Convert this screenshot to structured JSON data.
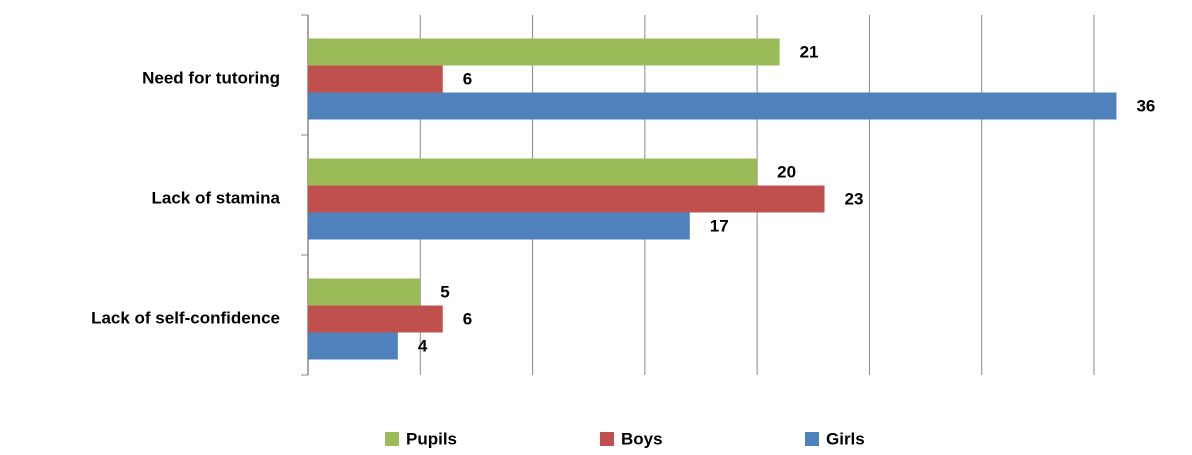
{
  "chart_data": {
    "type": "barh",
    "categories": [
      "Need for tutoring",
      "Lack of stamina",
      "Lack of self-confidence"
    ],
    "series": [
      {
        "name": "Pupils",
        "color": "#9bbb59",
        "values": [
          21,
          20,
          5
        ]
      },
      {
        "name": "Boys",
        "color": "#c0504d",
        "values": [
          6,
          23,
          6
        ]
      },
      {
        "name": "Girls",
        "color": "#4f81bd",
        "values": [
          36,
          17,
          4
        ]
      }
    ],
    "xlim": [
      0,
      35
    ],
    "xticks": [
      0,
      5,
      10,
      15,
      20,
      25,
      30,
      35
    ],
    "grid": true,
    "legend": "bottom"
  }
}
